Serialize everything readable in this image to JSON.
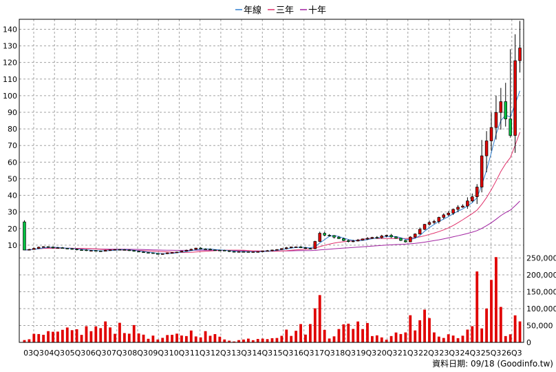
{
  "chart_data": {
    "type": "candlestick-with-volume",
    "legend": [
      {
        "name": "年線",
        "color": "#2f7fd0"
      },
      {
        "name": "三年",
        "color": "#e0306a"
      },
      {
        "name": "十年",
        "color": "#a020a0"
      }
    ],
    "legend_position": "top-center",
    "grid": true,
    "colors": {
      "up": "#e00000",
      "down": "#00c040",
      "volume": "#e00000"
    },
    "price_axis": {
      "min": 0,
      "max": 146,
      "ticks": [
        10,
        20,
        30,
        40,
        50,
        60,
        70,
        80,
        90,
        100,
        110,
        120,
        130,
        140
      ]
    },
    "volume_axis": {
      "min": 0,
      "max": 250000,
      "ticks": [
        0,
        50000,
        100000,
        150000,
        200000,
        250000
      ],
      "tick_labels": [
        "0",
        "50,000",
        "100,000",
        "150,000",
        "200,000",
        "250,000"
      ]
    },
    "x_labels": [
      "03Q3",
      "04Q3",
      "05Q3",
      "06Q3",
      "07Q3",
      "08Q3",
      "09Q3",
      "10Q3",
      "11Q3",
      "12Q3",
      "13Q3",
      "14Q3",
      "15Q3",
      "16Q3",
      "17Q3",
      "18Q3",
      "19Q3",
      "20Q3",
      "21Q3",
      "22Q3",
      "23Q3",
      "24Q3",
      "25Q3",
      "26Q3"
    ],
    "anchors": [
      {
        "t": 0,
        "p": 7
      },
      {
        "t": 4,
        "p": 9
      },
      {
        "t": 8,
        "p": 8
      },
      {
        "t": 12,
        "p": 7
      },
      {
        "t": 16,
        "p": 6.5
      },
      {
        "t": 20,
        "p": 7.5
      },
      {
        "t": 24,
        "p": 6
      },
      {
        "t": 28,
        "p": 4.5
      },
      {
        "t": 32,
        "p": 6
      },
      {
        "t": 36,
        "p": 8
      },
      {
        "t": 40,
        "p": 7
      },
      {
        "t": 44,
        "p": 6
      },
      {
        "t": 48,
        "p": 6
      },
      {
        "t": 52,
        "p": 7
      },
      {
        "t": 56,
        "p": 9
      },
      {
        "t": 60,
        "p": 8
      },
      {
        "t": 62,
        "p": 17
      },
      {
        "t": 64,
        "p": 16
      },
      {
        "t": 68,
        "p": 12
      },
      {
        "t": 72,
        "p": 14
      },
      {
        "t": 76,
        "p": 16
      },
      {
        "t": 80,
        "p": 12
      },
      {
        "t": 84,
        "p": 22
      },
      {
        "t": 88,
        "p": 28
      },
      {
        "t": 92,
        "p": 34
      },
      {
        "t": 94,
        "p": 38
      },
      {
        "t": 95,
        "p": 45
      },
      {
        "t": 96,
        "p": 65
      },
      {
        "t": 98,
        "p": 80
      },
      {
        "t": 100,
        "p": 96
      },
      {
        "t": 101,
        "p": 85
      },
      {
        "t": 102,
        "p": 78
      },
      {
        "t": 103,
        "p": 118
      },
      {
        "t": 104,
        "p": 132
      }
    ],
    "volume_anchors": [
      {
        "t": 0,
        "v": 15000
      },
      {
        "t": 20,
        "v": 55000
      },
      {
        "t": 28,
        "v": 10000
      },
      {
        "t": 36,
        "v": 35000
      },
      {
        "t": 44,
        "v": 5000
      },
      {
        "t": 52,
        "v": 20000
      },
      {
        "t": 60,
        "v": 50000
      },
      {
        "t": 62,
        "v": 140000
      },
      {
        "t": 64,
        "v": 20000
      },
      {
        "t": 70,
        "v": 70000
      },
      {
        "t": 76,
        "v": 10000
      },
      {
        "t": 80,
        "v": 60000
      },
      {
        "t": 84,
        "v": 75000
      },
      {
        "t": 88,
        "v": 20000
      },
      {
        "t": 92,
        "v": 15000
      },
      {
        "t": 94,
        "v": 90000
      },
      {
        "t": 95,
        "v": 210000
      },
      {
        "t": 96,
        "v": 40000
      },
      {
        "t": 98,
        "v": 185000
      },
      {
        "t": 99,
        "v": 255000
      },
      {
        "t": 100,
        "v": 105000
      },
      {
        "t": 101,
        "v": 20000
      },
      {
        "t": 103,
        "v": 80000
      },
      {
        "t": 104,
        "v": 50000
      }
    ]
  },
  "footer": {
    "text": "資料日期: 09/18  (Goodinfo.tw)"
  }
}
